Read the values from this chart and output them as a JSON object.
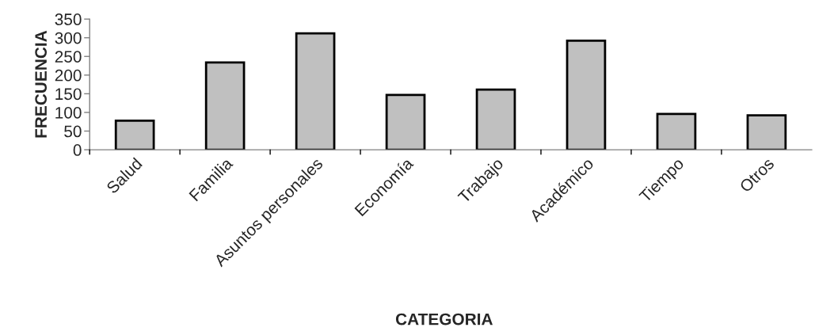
{
  "chart_data": {
    "type": "bar",
    "categories": [
      "Salud",
      "Familia",
      "Asuntos personales",
      "Economía",
      "Trabajo",
      "Académico",
      "Tiempo",
      "Otros"
    ],
    "values": [
      78,
      234,
      312,
      147,
      161,
      292,
      96,
      92
    ],
    "color": "#c0c0c0",
    "xlabel": "CATEGORIA",
    "ylabel": "FRECUENCIA",
    "ylim": [
      0,
      350
    ],
    "yticks": [
      0,
      50,
      100,
      150,
      200,
      250,
      300,
      350
    ],
    "grid": false
  }
}
